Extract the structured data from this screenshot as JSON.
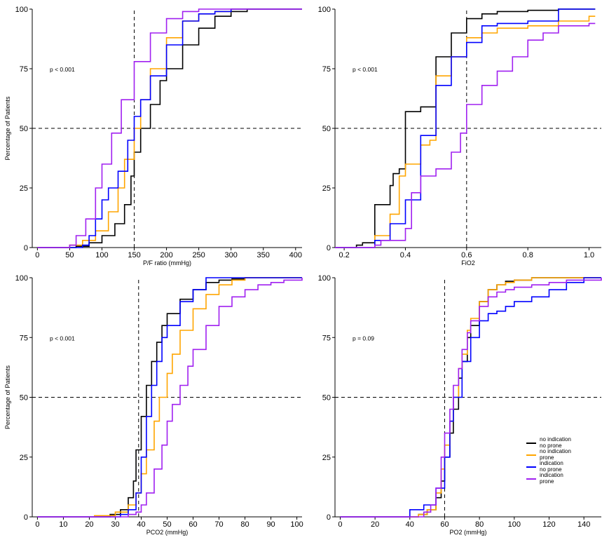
{
  "figure": {
    "ylabel": "Percentage of Patients",
    "legend": {
      "placement": "bottom-right panel, lower right",
      "entries": [
        {
          "line1": "no indication",
          "line2": "no prone",
          "color": "#000000"
        },
        {
          "line1": "no indication",
          "line2": "prone",
          "color": "#FFA500"
        },
        {
          "line1": "indication",
          "line2": "no prone",
          "color": "#0000FF"
        },
        {
          "line1": "indication",
          "line2": "prone",
          "color": "#A020F0"
        }
      ]
    }
  },
  "chart_data": [
    {
      "type": "line",
      "subtype": "empirical cumulative distribution (step)",
      "xlabel": "P/F ratio (mmHg)",
      "ylabel": "Percentage of Patients",
      "xlim": [
        -8,
        410
      ],
      "ylim": [
        0,
        100
      ],
      "xticks": [
        0,
        50,
        100,
        150,
        200,
        250,
        300,
        350,
        400
      ],
      "yticks": [
        0,
        25,
        50,
        75,
        100
      ],
      "annotation": "p < 0.001",
      "hline": 50,
      "vline": 150,
      "series": [
        {
          "name": "no indication no prone",
          "color": "#000000",
          "x": [
            0,
            60,
            80,
            100,
            120,
            135,
            145,
            150,
            160,
            175,
            190,
            200,
            225,
            250,
            275,
            300,
            325,
            400,
            410
          ],
          "y": [
            0,
            0.5,
            2,
            5,
            10,
            18,
            30,
            40,
            50,
            60,
            70,
            75,
            85,
            92,
            97,
            99,
            100,
            100,
            100
          ]
        },
        {
          "name": "no indication prone",
          "color": "#FFA500",
          "x": [
            0,
            50,
            70,
            90,
            110,
            125,
            135,
            150,
            160,
            175,
            200,
            225,
            250,
            275,
            300,
            400,
            410
          ],
          "y": [
            0,
            1,
            3,
            7,
            15,
            25,
            37,
            50,
            62,
            75,
            88,
            95,
            98,
            99,
            100,
            100,
            100
          ]
        },
        {
          "name": "indication no prone",
          "color": "#0000FF",
          "x": [
            0,
            70,
            80,
            90,
            100,
            110,
            125,
            140,
            150,
            160,
            175,
            200,
            225,
            250,
            275,
            300,
            410
          ],
          "y": [
            0,
            1,
            5,
            12,
            20,
            25,
            32,
            45,
            55,
            62,
            72,
            85,
            95,
            98,
            99,
            100,
            100
          ]
        },
        {
          "name": "indication prone",
          "color": "#A020F0",
          "x": [
            0,
            50,
            60,
            75,
            90,
            100,
            115,
            130,
            150,
            175,
            200,
            225,
            250,
            275,
            410
          ],
          "y": [
            0,
            1,
            5,
            12,
            25,
            35,
            48,
            62,
            78,
            90,
            96,
            99,
            100,
            100,
            100
          ]
        }
      ]
    },
    {
      "type": "line",
      "subtype": "empirical cumulative distribution (step)",
      "xlabel": "FiO2",
      "ylabel": "",
      "xlim": [
        0.17,
        1.04
      ],
      "ylim": [
        0,
        100
      ],
      "xticks": [
        0.2,
        0.4,
        0.6,
        0.8,
        1.0
      ],
      "xticklabels": [
        "0.2",
        "0.4",
        "0.6",
        "0.8",
        "1.0"
      ],
      "yticks": [
        0,
        25,
        50,
        75,
        100
      ],
      "annotation": "p < 0.001",
      "hline": 50,
      "vline": 0.6,
      "series": [
        {
          "name": "no indication no prone",
          "color": "#000000",
          "x": [
            0.17,
            0.24,
            0.26,
            0.3,
            0.35,
            0.36,
            0.38,
            0.4,
            0.45,
            0.5,
            0.55,
            0.6,
            0.65,
            0.7,
            0.8,
            0.9,
            1.0,
            1.02
          ],
          "y": [
            0,
            1,
            2,
            18,
            26,
            31,
            33,
            57,
            59,
            80,
            90,
            96,
            98,
            99,
            99.5,
            100,
            100,
            100
          ]
        },
        {
          "name": "no indication prone",
          "color": "#FFA500",
          "x": [
            0.17,
            0.3,
            0.35,
            0.38,
            0.4,
            0.45,
            0.48,
            0.5,
            0.55,
            0.6,
            0.65,
            0.7,
            0.8,
            0.9,
            1.0,
            1.02
          ],
          "y": [
            0,
            5,
            14,
            30,
            35,
            43,
            45,
            72,
            80,
            88,
            90,
            92,
            93,
            95,
            97,
            97
          ]
        },
        {
          "name": "indication no prone",
          "color": "#0000FF",
          "x": [
            0.17,
            0.3,
            0.35,
            0.4,
            0.45,
            0.5,
            0.55,
            0.6,
            0.65,
            0.7,
            0.8,
            0.9,
            1.02
          ],
          "y": [
            0,
            3,
            10,
            20,
            47,
            68,
            80,
            86,
            93,
            94,
            95,
            100,
            100
          ]
        },
        {
          "name": "indication prone",
          "color": "#A020F0",
          "x": [
            0.17,
            0.3,
            0.32,
            0.4,
            0.42,
            0.45,
            0.5,
            0.55,
            0.58,
            0.6,
            0.65,
            0.7,
            0.75,
            0.8,
            0.85,
            0.9,
            1.0,
            1.02
          ],
          "y": [
            0,
            1,
            3,
            8,
            23,
            30,
            33,
            40,
            48,
            60,
            68,
            74,
            80,
            87,
            90,
            93,
            94,
            94
          ]
        }
      ]
    },
    {
      "type": "line",
      "subtype": "empirical cumulative distribution (step)",
      "xlabel": "PCO2 (mmHg)",
      "ylabel": "Percentage of Patients",
      "xlim": [
        -2,
        102
      ],
      "ylim": [
        0,
        100
      ],
      "xticks": [
        0,
        10,
        20,
        30,
        40,
        50,
        60,
        70,
        80,
        90,
        100
      ],
      "yticks": [
        0,
        25,
        50,
        75,
        100
      ],
      "annotation": "p < 0.001",
      "hline": 50,
      "vline": 39,
      "series": [
        {
          "name": "no indication no prone",
          "color": "#000000",
          "x": [
            0,
            28,
            32,
            35,
            37,
            38,
            40,
            42,
            44,
            46,
            48,
            50,
            55,
            60,
            65,
            70,
            75,
            80,
            102
          ],
          "y": [
            0,
            1,
            3,
            8,
            15,
            28,
            42,
            55,
            65,
            73,
            80,
            85,
            91,
            95,
            98,
            99,
            99.5,
            100,
            100
          ]
        },
        {
          "name": "no indication prone",
          "color": "#FFA500",
          "x": [
            0,
            22,
            30,
            35,
            38,
            40,
            42,
            45,
            47,
            50,
            52,
            55,
            60,
            65,
            70,
            75,
            80,
            102
          ],
          "y": [
            0,
            0.5,
            2,
            5,
            10,
            18,
            28,
            40,
            50,
            60,
            68,
            78,
            87,
            93,
            97,
            99,
            100,
            100
          ]
        },
        {
          "name": "indication no prone",
          "color": "#0000FF",
          "x": [
            0,
            32,
            35,
            38,
            40,
            42,
            44,
            46,
            48,
            50,
            55,
            60,
            65,
            102
          ],
          "y": [
            0,
            1,
            3,
            10,
            25,
            42,
            55,
            65,
            75,
            80,
            90,
            95,
            100,
            100
          ]
        },
        {
          "name": "indication prone",
          "color": "#A020F0",
          "x": [
            0,
            35,
            38,
            40,
            42,
            45,
            48,
            50,
            52,
            55,
            58,
            60,
            65,
            70,
            75,
            80,
            85,
            90,
            95,
            102
          ],
          "y": [
            0,
            1,
            2,
            5,
            10,
            20,
            30,
            40,
            47,
            55,
            63,
            70,
            80,
            88,
            92,
            95,
            97,
            98,
            99,
            100
          ]
        }
      ]
    },
    {
      "type": "line",
      "subtype": "empirical cumulative distribution (step)",
      "xlabel": "PO2 (mmHg)",
      "ylabel": "",
      "xlim": [
        -3,
        150
      ],
      "ylim": [
        0,
        100
      ],
      "xticks": [
        0,
        20,
        40,
        60,
        80,
        100,
        120,
        140
      ],
      "yticks": [
        0,
        25,
        50,
        75,
        100
      ],
      "annotation": "p = 0.09",
      "hline": 50,
      "vline": 60,
      "series": [
        {
          "name": "no indication no prone",
          "color": "#000000",
          "x": [
            0,
            45,
            50,
            55,
            58,
            60,
            63,
            65,
            68,
            70,
            73,
            75,
            80,
            85,
            90,
            95,
            100,
            110,
            150
          ],
          "y": [
            0,
            1,
            3,
            8,
            15,
            25,
            35,
            45,
            58,
            65,
            75,
            80,
            90,
            95,
            97,
            98.5,
            99,
            100,
            100
          ]
        },
        {
          "name": "no indication prone",
          "color": "#FFA500",
          "x": [
            0,
            45,
            50,
            55,
            58,
            60,
            63,
            65,
            68,
            70,
            73,
            75,
            80,
            85,
            90,
            95,
            100,
            110,
            150
          ],
          "y": [
            0,
            1,
            3,
            10,
            20,
            30,
            40,
            50,
            62,
            68,
            78,
            83,
            90,
            95,
            97,
            98,
            99,
            100,
            100
          ]
        },
        {
          "name": "indication no prone",
          "color": "#0000FF",
          "x": [
            0,
            40,
            48,
            55,
            60,
            63,
            65,
            70,
            75,
            80,
            85,
            90,
            95,
            100,
            110,
            120,
            130,
            140,
            150
          ],
          "y": [
            0,
            3,
            5,
            12,
            25,
            40,
            50,
            65,
            75,
            82,
            85,
            86,
            88,
            90,
            92,
            95,
            98,
            100,
            100
          ]
        },
        {
          "name": "indication prone",
          "color": "#A020F0",
          "x": [
            0,
            48,
            52,
            55,
            58,
            60,
            63,
            65,
            68,
            70,
            73,
            75,
            80,
            85,
            90,
            95,
            100,
            110,
            120,
            130,
            150
          ],
          "y": [
            0,
            2,
            5,
            12,
            25,
            35,
            45,
            55,
            62,
            70,
            77,
            82,
            88,
            92,
            94,
            95,
            96,
            97,
            98,
            99,
            100
          ]
        }
      ]
    }
  ]
}
